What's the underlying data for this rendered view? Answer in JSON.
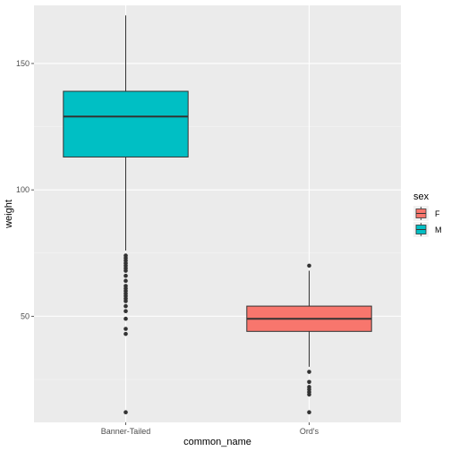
{
  "chart_data": {
    "type": "boxplot",
    "xlabel": "common_name",
    "ylabel": "weight",
    "categories": [
      "Banner-Tailed",
      "Ord's"
    ],
    "ylim": [
      8,
      173
    ],
    "y_ticks": [
      50,
      100,
      150
    ],
    "grid": true,
    "legend": {
      "title": "sex",
      "position": "right",
      "entries": [
        {
          "label": "F",
          "color": "#f8766d"
        },
        {
          "label": "M",
          "color": "#00bfc4"
        }
      ]
    },
    "boxes": [
      {
        "category": "Banner-Tailed",
        "group": "M",
        "color": "#00bfc4",
        "whisker_low": 76,
        "q1": 113,
        "median": 129,
        "q3": 139,
        "whisker_high": 169,
        "outliers": [
          74,
          73,
          72,
          71,
          70,
          69,
          68,
          66,
          64,
          62,
          61,
          60,
          59,
          58,
          57,
          56,
          54,
          52,
          49,
          45,
          43,
          12
        ]
      },
      {
        "category": "Ord's",
        "group": "F",
        "color": "#f8766d",
        "whisker_low": 30,
        "q1": 44,
        "median": 49,
        "q3": 54,
        "whisker_high": 68,
        "outliers": [
          70,
          28,
          24,
          22,
          21,
          20,
          19,
          12
        ]
      }
    ]
  }
}
